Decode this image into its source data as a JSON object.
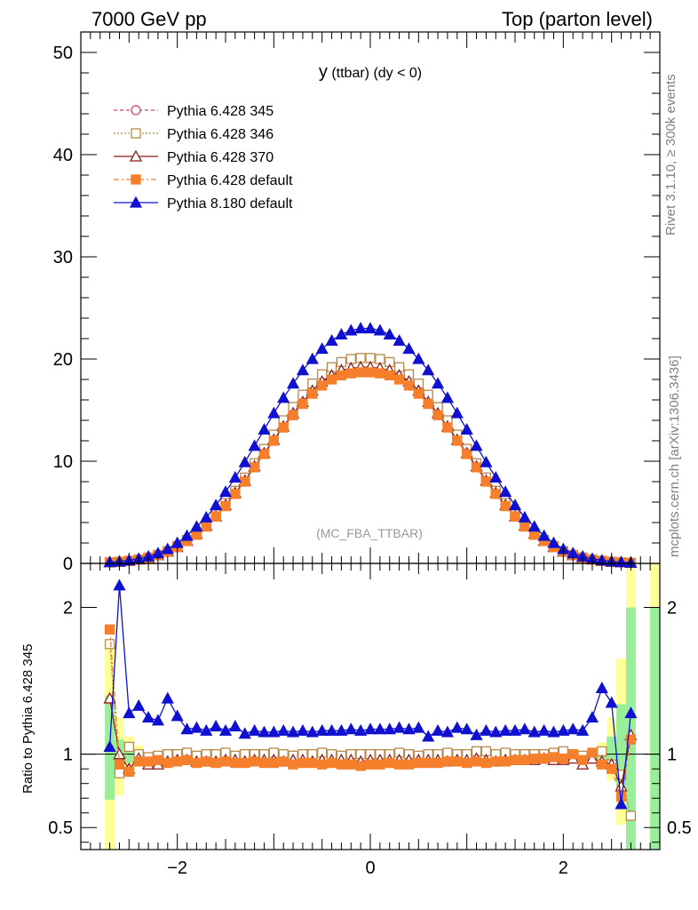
{
  "header": {
    "left": "7000 GeV pp",
    "right": "Top (parton level)"
  },
  "side_text": {
    "rivet": "Rivet 3.1.10, ≥ 300k events",
    "mcplots": "mcplots.cern.ch [arXiv:1306.3436]"
  },
  "analysis_label": "(MC_FBA_TTBAR)",
  "chart_data": [
    {
      "type": "line",
      "title": "y (ttbar) (dy < 0)",
      "title_parts": {
        "main": "y",
        "sub": " (ttbar) (dy < 0)"
      },
      "xlim": [
        -3.0,
        3.0
      ],
      "ylim": [
        0,
        52
      ],
      "yticks": [
        0,
        10,
        20,
        30,
        40,
        50
      ],
      "ytick_labels": [
        "0",
        "10",
        "20",
        "30",
        "40",
        "50"
      ],
      "legend_position": "top-left",
      "x": [
        -2.7,
        -2.6,
        -2.5,
        -2.4,
        -2.3,
        -2.2,
        -2.1,
        -2.0,
        -1.9,
        -1.8,
        -1.7,
        -1.6,
        -1.5,
        -1.4,
        -1.3,
        -1.2,
        -1.1,
        -1.0,
        -0.9,
        -0.8,
        -0.7,
        -0.6,
        -0.5,
        -0.4,
        -0.3,
        -0.2,
        -0.1,
        0.0,
        0.1,
        0.2,
        0.3,
        0.4,
        0.5,
        0.6,
        0.7,
        0.8,
        0.9,
        1.0,
        1.1,
        1.2,
        1.3,
        1.4,
        1.5,
        1.6,
        1.7,
        1.8,
        1.9,
        2.0,
        2.1,
        2.2,
        2.3,
        2.4,
        2.5,
        2.6,
        2.7
      ],
      "series": [
        {
          "name": "Pythia 6.428 345",
          "color": "#d6406a",
          "marker": "circle-open",
          "dash": "4,3",
          "values": [
            0.1,
            0.16,
            0.26,
            0.39,
            0.58,
            0.84,
            1.2,
            1.7,
            2.3,
            3.0,
            3.8,
            4.8,
            5.9,
            7.1,
            8.4,
            9.8,
            11.2,
            12.6,
            14.0,
            15.3,
            16.5,
            17.6,
            18.5,
            19.2,
            19.7,
            20.0,
            20.1,
            20.1,
            20.0,
            19.7,
            19.2,
            18.5,
            17.6,
            16.5,
            15.3,
            14.0,
            12.6,
            11.2,
            9.8,
            8.4,
            7.1,
            5.9,
            4.8,
            3.8,
            3.0,
            2.3,
            1.7,
            1.2,
            0.84,
            0.58,
            0.39,
            0.26,
            0.16,
            0.1,
            0.06
          ]
        },
        {
          "name": "Pythia 6.428 346",
          "color": "#b88a4a",
          "marker": "square-open",
          "dash": "2,2",
          "values": [
            0.1,
            0.16,
            0.26,
            0.39,
            0.58,
            0.84,
            1.2,
            1.7,
            2.3,
            3.0,
            3.8,
            4.8,
            5.9,
            7.1,
            8.4,
            9.8,
            11.2,
            12.6,
            14.0,
            15.3,
            16.5,
            17.6,
            18.5,
            19.2,
            19.7,
            20.0,
            20.1,
            20.1,
            20.0,
            19.7,
            19.2,
            18.5,
            17.6,
            16.5,
            15.3,
            14.0,
            12.6,
            11.2,
            9.8,
            8.4,
            7.1,
            5.9,
            4.8,
            3.8,
            3.0,
            2.3,
            1.7,
            1.2,
            0.84,
            0.58,
            0.39,
            0.26,
            0.16,
            0.1,
            0.06
          ]
        },
        {
          "name": "Pythia 6.428 370",
          "color": "#8b1a1a",
          "marker": "triangle-open",
          "dash": "",
          "values": [
            0.1,
            0.15,
            0.24,
            0.37,
            0.55,
            0.8,
            1.14,
            1.6,
            2.2,
            2.9,
            3.7,
            4.6,
            5.7,
            6.9,
            8.1,
            9.5,
            10.8,
            12.1,
            13.4,
            14.7,
            15.8,
            16.9,
            17.8,
            18.4,
            18.9,
            19.1,
            19.2,
            19.2,
            19.1,
            18.9,
            18.4,
            17.8,
            16.9,
            15.8,
            14.7,
            13.4,
            12.1,
            10.8,
            9.5,
            8.1,
            6.9,
            5.7,
            4.6,
            3.7,
            2.9,
            2.2,
            1.6,
            1.14,
            0.8,
            0.55,
            0.37,
            0.24,
            0.15,
            0.1,
            0.06
          ]
        },
        {
          "name": "Pythia 6.428 default",
          "color": "#f57f2a",
          "marker": "square-filled",
          "dash": "6,3,2,3",
          "values": [
            0.1,
            0.15,
            0.24,
            0.37,
            0.55,
            0.8,
            1.13,
            1.6,
            2.2,
            2.8,
            3.6,
            4.6,
            5.6,
            6.8,
            8.0,
            9.4,
            10.7,
            12.0,
            13.3,
            14.5,
            15.6,
            16.6,
            17.4,
            18.0,
            18.4,
            18.6,
            18.7,
            18.7,
            18.6,
            18.4,
            18.0,
            17.4,
            16.6,
            15.6,
            14.5,
            13.3,
            12.0,
            10.7,
            9.4,
            8.0,
            6.8,
            5.6,
            4.6,
            3.6,
            2.8,
            2.2,
            1.6,
            1.13,
            0.8,
            0.55,
            0.37,
            0.24,
            0.15,
            0.1,
            0.06
          ]
        },
        {
          "name": "Pythia 8.180 default",
          "color": "#1010d0",
          "marker": "triangle-filled",
          "dash": "",
          "values": [
            0.12,
            0.19,
            0.3,
            0.46,
            0.68,
            0.99,
            1.4,
            2.0,
            2.7,
            3.6,
            4.5,
            5.7,
            7.0,
            8.4,
            9.9,
            11.5,
            13.1,
            14.7,
            16.2,
            17.6,
            18.9,
            20.0,
            21.0,
            21.8,
            22.4,
            22.8,
            23.0,
            23.0,
            22.8,
            22.4,
            21.8,
            21.0,
            20.0,
            18.9,
            17.6,
            16.2,
            14.7,
            13.1,
            11.5,
            9.9,
            8.4,
            7.0,
            5.7,
            4.5,
            3.6,
            2.7,
            2.0,
            1.4,
            0.99,
            0.68,
            0.46,
            0.3,
            0.19,
            0.12,
            0.07
          ]
        }
      ]
    },
    {
      "type": "line",
      "ylabel": "Ratio to Pythia 6.428 345",
      "xlim": [
        -3.0,
        3.0
      ],
      "ylim": [
        0.35,
        2.3
      ],
      "xticks": [
        -2,
        0,
        2
      ],
      "xtick_labels": [
        "−2",
        "0",
        "2"
      ],
      "yticks": [
        0.5,
        1,
        2
      ],
      "ytick_labels": [
        "0.5",
        "1",
        "2"
      ],
      "x": [
        -2.7,
        -2.6,
        -2.5,
        -2.4,
        -2.3,
        -2.2,
        -2.1,
        -2.0,
        -1.9,
        -1.8,
        -1.7,
        -1.6,
        -1.5,
        -1.4,
        -1.3,
        -1.2,
        -1.1,
        -1.0,
        -0.9,
        -0.8,
        -0.7,
        -0.6,
        -0.5,
        -0.4,
        -0.3,
        -0.2,
        -0.1,
        0.0,
        0.1,
        0.2,
        0.3,
        0.4,
        0.5,
        0.6,
        0.7,
        0.8,
        0.9,
        1.0,
        1.1,
        1.2,
        1.3,
        1.4,
        1.5,
        1.6,
        1.7,
        1.8,
        1.9,
        2.0,
        2.1,
        2.2,
        2.3,
        2.4,
        2.5,
        2.6,
        2.7
      ],
      "uncertainty_bands": [
        {
          "x": [
            -2.75,
            -2.65
          ],
          "low": 0.28,
          "high": 1.75,
          "color": "#ffff99"
        },
        {
          "x": [
            -2.75,
            -2.65
          ],
          "low": 0.69,
          "high": 1.4,
          "color": "#99ee99"
        },
        {
          "x": [
            -2.65,
            -2.55
          ],
          "low": 0.72,
          "high": 1.25,
          "color": "#ffff99"
        },
        {
          "x": [
            -2.65,
            -2.55
          ],
          "low": 0.86,
          "high": 1.1,
          "color": "#99ee99"
        },
        {
          "x": [
            -2.55,
            -2.45
          ],
          "low": 0.88,
          "high": 1.12,
          "color": "#ffff99"
        },
        {
          "x": [
            -2.55,
            -2.45
          ],
          "low": 0.94,
          "high": 1.06,
          "color": "#99ee99"
        },
        {
          "x": [
            -2.45,
            -2.35
          ],
          "low": 0.94,
          "high": 1.06,
          "color": "#ffff99"
        },
        {
          "x": [
            -2.45,
            -2.35
          ],
          "low": 0.97,
          "high": 1.03,
          "color": "#99ee99"
        },
        {
          "x": [
            2.35,
            2.45
          ],
          "low": 0.92,
          "high": 1.08,
          "color": "#ffff99"
        },
        {
          "x": [
            2.35,
            2.45
          ],
          "low": 0.96,
          "high": 1.04,
          "color": "#99ee99"
        },
        {
          "x": [
            2.45,
            2.55
          ],
          "low": 0.82,
          "high": 1.25,
          "color": "#ffff99"
        },
        {
          "x": [
            2.45,
            2.55
          ],
          "low": 0.9,
          "high": 1.12,
          "color": "#99ee99"
        },
        {
          "x": [
            2.55,
            2.65
          ],
          "low": 0.52,
          "high": 1.65,
          "color": "#ffff99"
        },
        {
          "x": [
            2.55,
            2.65
          ],
          "low": 0.76,
          "high": 1.34,
          "color": "#99ee99"
        },
        {
          "x": [
            2.65,
            2.75
          ],
          "low": 0.28,
          "high": 2.3,
          "color": "#ffff99"
        },
        {
          "x": [
            2.65,
            2.75
          ],
          "low": 0.28,
          "high": 2.0,
          "color": "#99ee99"
        },
        {
          "x": [
            2.9,
            3.0
          ],
          "low": 0.28,
          "high": 2.3,
          "color": "#ffff99"
        },
        {
          "x": [
            2.9,
            3.0
          ],
          "low": 0.28,
          "high": 2.0,
          "color": "#99ee99"
        }
      ],
      "series": [
        {
          "name": "Pythia 6.428 346",
          "color": "#b88a4a",
          "marker": "square-open",
          "dash": "2,2",
          "values": [
            1.75,
            0.87,
            1.05,
            1.0,
            0.98,
            0.99,
            1.0,
            1.0,
            1.01,
            0.99,
            1.0,
            1.0,
            1.01,
            0.99,
            1.0,
            1.0,
            1.0,
            1.01,
            1.0,
            0.99,
            1.0,
            1.0,
            1.01,
            1.0,
            0.99,
            1.0,
            1.0,
            1.0,
            1.0,
            1.0,
            1.01,
            1.0,
            0.99,
            1.0,
            1.0,
            1.01,
            1.0,
            1.0,
            1.02,
            1.02,
            1.0,
            1.01,
            1.0,
            1.0,
            1.0,
            1.0,
            1.01,
            1.02,
            1.0,
            0.99,
            0.97,
            1.02,
            0.93,
            0.86,
            0.58
          ]
        },
        {
          "name": "Pythia 6.428 370",
          "color": "#8b1a1a",
          "marker": "triangle-open",
          "dash": "",
          "values": [
            1.38,
            1.0,
            0.9,
            0.97,
            0.93,
            0.93,
            0.95,
            0.96,
            0.96,
            0.95,
            0.95,
            0.95,
            0.96,
            0.96,
            0.95,
            0.96,
            0.96,
            0.96,
            0.95,
            0.96,
            0.96,
            0.95,
            0.96,
            0.96,
            0.96,
            0.96,
            0.95,
            0.96,
            0.96,
            0.96,
            0.96,
            0.96,
            0.96,
            0.96,
            0.96,
            0.95,
            0.96,
            0.96,
            0.97,
            0.96,
            0.95,
            0.96,
            0.96,
            0.96,
            0.96,
            0.97,
            0.96,
            0.96,
            0.97,
            0.93,
            0.97,
            0.95,
            0.93,
            0.78,
            1.13
          ]
        },
        {
          "name": "Pythia 6.428 default",
          "color": "#f57f2a",
          "marker": "square-filled",
          "dash": "6,3,2,3",
          "values": [
            1.85,
            0.93,
            0.88,
            0.95,
            0.95,
            0.96,
            0.94,
            0.95,
            0.96,
            0.94,
            0.95,
            0.94,
            0.95,
            0.94,
            0.94,
            0.95,
            0.94,
            0.94,
            0.95,
            0.93,
            0.94,
            0.94,
            0.93,
            0.94,
            0.93,
            0.93,
            0.92,
            0.93,
            0.93,
            0.94,
            0.93,
            0.93,
            0.94,
            0.94,
            0.94,
            0.95,
            0.95,
            0.94,
            0.95,
            0.94,
            0.95,
            0.95,
            0.96,
            0.96,
            0.97,
            0.97,
            0.98,
            0.97,
            1.0,
            0.96,
            1.01,
            0.93,
            0.9,
            0.71,
            1.1
          ]
        },
        {
          "name": "Pythia 8.180 default",
          "color": "#1010d0",
          "marker": "triangle-filled",
          "dash": "",
          "values": [
            1.05,
            2.15,
            1.28,
            1.33,
            1.25,
            1.23,
            1.38,
            1.26,
            1.17,
            1.18,
            1.16,
            1.19,
            1.16,
            1.19,
            1.14,
            1.16,
            1.15,
            1.15,
            1.16,
            1.15,
            1.16,
            1.15,
            1.16,
            1.16,
            1.16,
            1.17,
            1.16,
            1.17,
            1.17,
            1.17,
            1.18,
            1.17,
            1.18,
            1.12,
            1.16,
            1.15,
            1.18,
            1.17,
            1.13,
            1.16,
            1.15,
            1.16,
            1.16,
            1.17,
            1.15,
            1.16,
            1.15,
            1.16,
            1.17,
            1.16,
            1.25,
            1.45,
            1.35,
            0.66,
            1.28
          ]
        }
      ]
    }
  ]
}
